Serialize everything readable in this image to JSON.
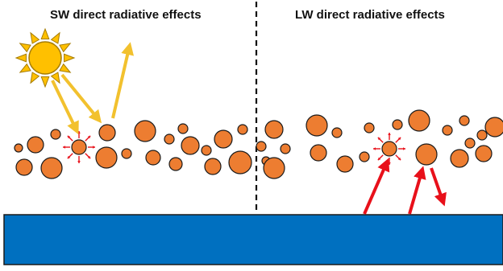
{
  "panels": {
    "left_title": "SW direct radiative effects",
    "right_title": "LW direct radiative effects"
  },
  "colors": {
    "particle_fill": "#ED7D31",
    "particle_stroke": "#1A1A1A",
    "sun_fill": "#FFC000",
    "sun_stroke": "#A67C00",
    "sw_arrow": "#F2C12E",
    "lw_arrow": "#E8101A",
    "surface_fill": "#0070C0",
    "surface_stroke": "#1A1A1A",
    "divider": "#111111"
  },
  "icons": [
    "sun-icon",
    "aerosol-particle-icon",
    "absorbing-particle-icon"
  ]
}
